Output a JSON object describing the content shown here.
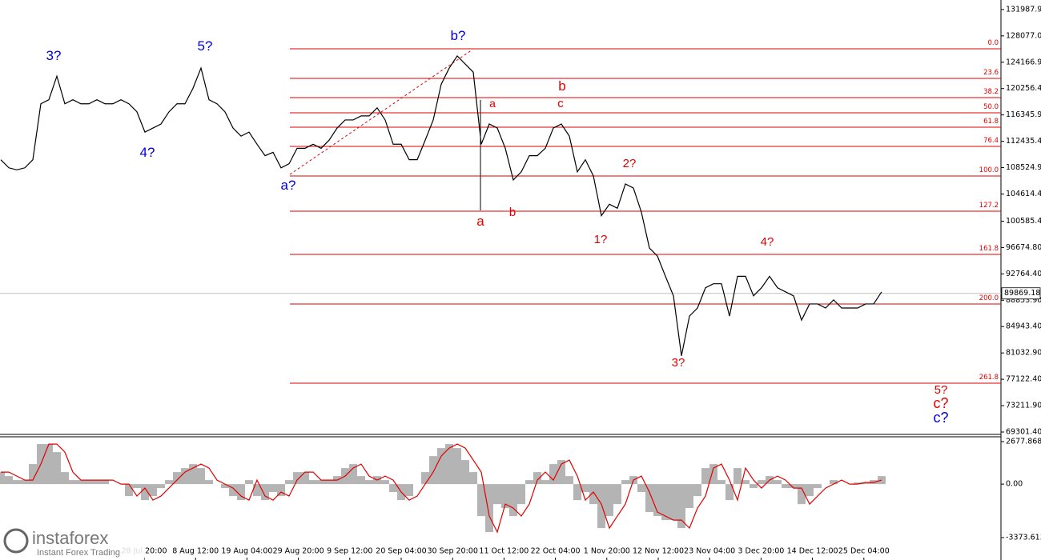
{
  "chart_data": [
    {
      "type": "line",
      "color": "#000000",
      "values": [
        109700,
        108500,
        108200,
        108500,
        109700,
        118000,
        118600,
        122100,
        118000,
        118600,
        118000,
        118000,
        118600,
        118000,
        118000,
        118600,
        118000,
        116800,
        113800,
        114400,
        115000,
        116800,
        118000,
        118000,
        120300,
        123300,
        118600,
        118000,
        116800,
        114400,
        113200,
        113800,
        112000,
        110300,
        110800,
        108500,
        109100,
        111400,
        111400,
        112000,
        111400,
        112600,
        114400,
        115600,
        115600,
        116200,
        116200,
        117400,
        115600,
        112000,
        112000,
        109700,
        109700,
        112600,
        115600,
        120900,
        123300,
        125100,
        123900,
        122700,
        112000,
        115000,
        114400,
        111400,
        106700,
        107900,
        110300,
        110300,
        111400,
        114400,
        115000,
        113200,
        107900,
        109700,
        107300,
        101400,
        103100,
        102500,
        106100,
        105500,
        101900,
        96600,
        95400,
        92400,
        89500,
        80600,
        86500,
        87700,
        90700,
        91300,
        91300,
        86500,
        92400,
        92400,
        89500,
        90700,
        92400,
        90700,
        90100,
        89500,
        85900,
        88300,
        88300,
        87700,
        88900,
        87700,
        87700,
        87700,
        88300,
        88300,
        90100
      ],
      "ylim": [
        68945,
        133400
      ],
      "yticks": [
        {
          "value": 131987.9,
          "label": "131987.90"
        },
        {
          "value": 128077,
          "label": "128077.00"
        },
        {
          "value": 124166.9,
          "label": "124166.90"
        },
        {
          "value": 120256.4,
          "label": "120256.40"
        },
        {
          "value": 116345.9,
          "label": "116345.90"
        },
        {
          "value": 112435.4,
          "label": "112435.40"
        },
        {
          "value": 108524.9,
          "label": "108524.90"
        },
        {
          "value": 104614.4,
          "label": "104614.40"
        },
        {
          "value": 100585.4,
          "label": "100585.40"
        },
        {
          "value": 96674.8,
          "label": "96674.80"
        },
        {
          "value": 92764.4,
          "label": "92764.40"
        },
        {
          "value": 88853.9,
          "label": "88853.90"
        },
        {
          "value": 84943.4,
          "label": "84943.40"
        },
        {
          "value": 81032.9,
          "label": "81032.90"
        },
        {
          "value": 77122.4,
          "label": "77122.40"
        },
        {
          "value": 73211.9,
          "label": "73211.90"
        },
        {
          "value": 69301.4,
          "label": "69301.40"
        }
      ],
      "last_price": {
        "value": 89869.18,
        "label": "89869.18"
      },
      "fib_color": "#e00000",
      "fib_levels": [
        {
          "label": "0.0",
          "price": 126159
        },
        {
          "label": "23.6",
          "price": 121767
        },
        {
          "label": "38.2",
          "price": 118918
        },
        {
          "label": "50.0",
          "price": 116662
        },
        {
          "label": "61.8",
          "price": 114526
        },
        {
          "label": "76.4",
          "price": 111677
        },
        {
          "label": "100.0",
          "price": 107285
        },
        {
          "label": "127.2",
          "price": 102062
        },
        {
          "label": "161.8",
          "price": 95653
        },
        {
          "label": "200.0",
          "price": 88293
        },
        {
          "label": "261.8",
          "price": 76542
        }
      ],
      "annotations": [
        {
          "text": "3?",
          "color": "#0000dd"
        },
        {
          "text": "5?",
          "color": "#0000dd"
        },
        {
          "text": "4?",
          "color": "#0000dd"
        },
        {
          "text": "a?",
          "color": "#0000dd"
        },
        {
          "text": "b?",
          "color": "#0000dd"
        },
        {
          "text": "c?",
          "color": "#0000dd"
        },
        {
          "text": "a",
          "color": "#e00000"
        },
        {
          "text": "b",
          "color": "#e00000"
        },
        {
          "text": "a",
          "color": "#e00000"
        },
        {
          "text": "b",
          "color": "#e00000"
        },
        {
          "text": "c",
          "color": "#e00000"
        },
        {
          "text": "2?",
          "color": "#e00000"
        },
        {
          "text": "1?",
          "color": "#e00000"
        },
        {
          "text": "3?",
          "color": "#e00000"
        },
        {
          "text": "4?",
          "color": "#e00000"
        },
        {
          "text": "5?",
          "color": "#e00000"
        },
        {
          "text": "c?",
          "color": "#e00000"
        }
      ],
      "xtick_labels": [
        "28 Jul 20:00",
        "8 Aug 12:00",
        "19 Aug 04:00",
        "29 Aug 20:00",
        "9 Sep 12:00",
        "20 Sep 04:00",
        "30 Sep 20:00",
        "11 Oct 12:00",
        "22 Oct 04:00",
        "1 Nov 20:00",
        "12 Nov 12:00",
        "23 Nov 04:00",
        "3 Dec 20:00",
        "14 Dec 12:00",
        "25 Dec 04:00"
      ]
    },
    {
      "type": "histogram",
      "color": "#b4b4b4",
      "values": [
        756,
        504,
        252,
        252,
        1261,
        2522,
        2522,
        2017,
        756,
        252,
        252,
        252,
        252,
        252,
        0,
        0,
        -756,
        -252,
        -1009,
        -756,
        -252,
        252,
        756,
        1009,
        1261,
        1009,
        252,
        0,
        -252,
        -756,
        -1009,
        252,
        -756,
        -1009,
        -504,
        -756,
        252,
        756,
        756,
        252,
        252,
        252,
        504,
        1009,
        1261,
        504,
        252,
        504,
        252,
        -504,
        -1009,
        -756,
        0,
        756,
        1765,
        2269,
        2522,
        2269,
        1513,
        756,
        -2017,
        -3026,
        -1261,
        -1513,
        -2017,
        -1261,
        252,
        756,
        252,
        1261,
        1513,
        504,
        -1009,
        -504,
        -1261,
        -2774,
        -2017,
        -1261,
        252,
        504,
        -504,
        -1765,
        -2017,
        -2269,
        -2269,
        -2774,
        -1513,
        -756,
        1009,
        1261,
        252,
        -1009,
        1009,
        252,
        -252,
        252,
        504,
        252,
        -252,
        -252,
        -1261,
        -756,
        -252,
        0,
        252,
        0,
        0,
        101,
        101,
        252,
        504
      ],
      "signal_color": "#e00000",
      "signal_values": [
        756,
        756,
        504,
        252,
        252,
        1261,
        2522,
        2522,
        2017,
        756,
        252,
        252,
        252,
        252,
        252,
        0,
        0,
        -756,
        -252,
        -1009,
        -756,
        -252,
        252,
        756,
        1009,
        1261,
        1009,
        252,
        0,
        -252,
        -756,
        -1009,
        252,
        -756,
        -1009,
        -504,
        -756,
        252,
        756,
        756,
        252,
        252,
        252,
        504,
        1009,
        1261,
        504,
        252,
        504,
        252,
        -504,
        -1009,
        -756,
        0,
        756,
        1765,
        2269,
        2522,
        2269,
        1513,
        756,
        -2017,
        -3026,
        -1261,
        -1513,
        -2017,
        -1261,
        252,
        756,
        252,
        1261,
        1513,
        504,
        -1009,
        -504,
        -1261,
        -2774,
        -2017,
        -1261,
        252,
        504,
        -504,
        -1765,
        -2017,
        -2269,
        -2269,
        -2774,
        -1513,
        -756,
        1009,
        1261,
        252,
        -1009,
        1009,
        252,
        -252,
        252,
        504,
        252,
        -252,
        -252,
        -1261,
        -756,
        -252,
        0,
        252,
        0,
        0,
        101,
        101,
        252
      ],
      "ylim": [
        -4634,
        2930
      ],
      "yticks": [
        2677.868,
        {
          "value": 0,
          "label": "0.00"
        },
        -3373.613
      ]
    }
  ],
  "branding": {
    "logo": "instaforex",
    "tagline": "Instant Forex Trading"
  }
}
